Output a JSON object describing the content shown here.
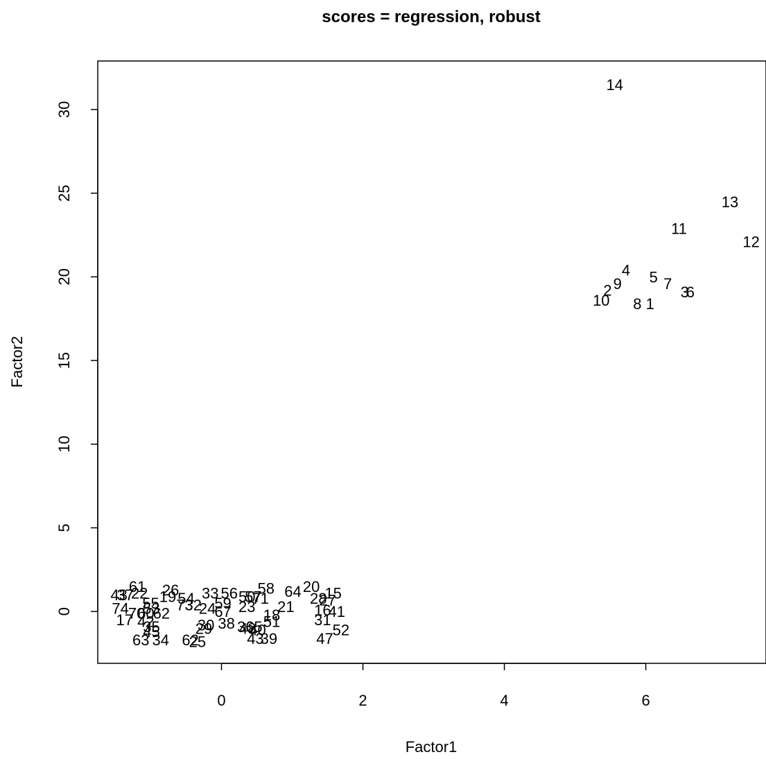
{
  "chart_data": {
    "type": "scatter",
    "title": "scores = regression, robust",
    "xlabel": "Factor1",
    "ylabel": "Factor2",
    "xlim": [
      -1.75,
      7.7
    ],
    "ylim": [
      -3.1,
      32.9
    ],
    "xticks": [
      0,
      2,
      4,
      6
    ],
    "yticks": [
      0,
      5,
      10,
      15,
      20,
      25,
      30
    ],
    "grid": false,
    "legend": "none",
    "marker": "text labels",
    "points": [
      {
        "label": "14",
        "x": 5.56,
        "y": 31.5
      },
      {
        "label": "13",
        "x": 7.19,
        "y": 24.5
      },
      {
        "label": "11",
        "x": 6.47,
        "y": 22.9
      },
      {
        "label": "12",
        "x": 7.49,
        "y": 22.1
      },
      {
        "label": "4",
        "x": 5.72,
        "y": 20.4
      },
      {
        "label": "5",
        "x": 6.11,
        "y": 20.0
      },
      {
        "label": "7",
        "x": 6.31,
        "y": 19.6
      },
      {
        "label": "9",
        "x": 5.6,
        "y": 19.6
      },
      {
        "label": "2",
        "x": 5.46,
        "y": 19.2
      },
      {
        "label": "3",
        "x": 6.55,
        "y": 19.1
      },
      {
        "label": "6",
        "x": 6.63,
        "y": 19.1
      },
      {
        "label": "10",
        "x": 5.37,
        "y": 18.6
      },
      {
        "label": "8",
        "x": 5.88,
        "y": 18.4
      },
      {
        "label": "1",
        "x": 6.06,
        "y": 18.4
      },
      {
        "label": "43",
        "x": -1.45,
        "y": 1.0
      },
      {
        "label": "37",
        "x": -1.36,
        "y": 1.0
      },
      {
        "label": "61",
        "x": -1.19,
        "y": 1.5
      },
      {
        "label": "22",
        "x": -1.16,
        "y": 1.1
      },
      {
        "label": "26",
        "x": -0.72,
        "y": 1.3
      },
      {
        "label": "19",
        "x": -0.76,
        "y": 0.9
      },
      {
        "label": "54",
        "x": -0.5,
        "y": 0.8
      },
      {
        "label": "33",
        "x": -0.16,
        "y": 1.1
      },
      {
        "label": "56",
        "x": 0.11,
        "y": 1.1
      },
      {
        "label": "50",
        "x": 0.36,
        "y": 0.9
      },
      {
        "label": "58",
        "x": 0.63,
        "y": 1.4
      },
      {
        "label": "57",
        "x": 0.45,
        "y": 0.9
      },
      {
        "label": "64",
        "x": 1.01,
        "y": 1.2
      },
      {
        "label": "20",
        "x": 1.27,
        "y": 1.5
      },
      {
        "label": "15",
        "x": 1.58,
        "y": 1.1
      },
      {
        "label": "28",
        "x": 1.37,
        "y": 0.8
      },
      {
        "label": "27",
        "x": 1.5,
        "y": 0.7
      },
      {
        "label": "74",
        "x": -1.43,
        "y": 0.2
      },
      {
        "label": "55",
        "x": -1.0,
        "y": 0.5
      },
      {
        "label": "53",
        "x": -0.99,
        "y": 0.2
      },
      {
        "label": "73",
        "x": -0.52,
        "y": 0.4
      },
      {
        "label": "32",
        "x": -0.4,
        "y": 0.4
      },
      {
        "label": "24",
        "x": -0.2,
        "y": 0.2
      },
      {
        "label": "59",
        "x": 0.02,
        "y": 0.5
      },
      {
        "label": "23",
        "x": 0.36,
        "y": 0.3
      },
      {
        "label": "71",
        "x": 0.55,
        "y": 0.8
      },
      {
        "label": "21",
        "x": 0.91,
        "y": 0.3
      },
      {
        "label": "16",
        "x": 1.43,
        "y": 0.1
      },
      {
        "label": "41",
        "x": 1.63,
        "y": 0.0
      },
      {
        "label": "67",
        "x": 0.02,
        "y": 0.0
      },
      {
        "label": "70",
        "x": -1.2,
        "y": -0.1
      },
      {
        "label": "60",
        "x": -1.07,
        "y": -0.1
      },
      {
        "label": "62",
        "x": -0.85,
        "y": -0.1
      },
      {
        "label": "17",
        "x": -1.37,
        "y": -0.5
      },
      {
        "label": "42",
        "x": -1.07,
        "y": -0.6
      },
      {
        "label": "18",
        "x": 0.71,
        "y": -0.2
      },
      {
        "label": "51",
        "x": 0.71,
        "y": -0.6
      },
      {
        "label": "31",
        "x": 1.43,
        "y": -0.5
      },
      {
        "label": "52",
        "x": 1.69,
        "y": -1.1
      },
      {
        "label": "30",
        "x": -0.22,
        "y": -0.8
      },
      {
        "label": "38",
        "x": 0.07,
        "y": -0.7
      },
      {
        "label": "36",
        "x": 0.34,
        "y": -0.9
      },
      {
        "label": "65",
        "x": 0.46,
        "y": -0.9
      },
      {
        "label": "48",
        "x": 0.37,
        "y": -1.0
      },
      {
        "label": "40",
        "x": 0.51,
        "y": -1.1
      },
      {
        "label": "29",
        "x": -0.25,
        "y": -1.0
      },
      {
        "label": "35",
        "x": -0.99,
        "y": -0.9
      },
      {
        "label": "45",
        "x": -0.99,
        "y": -1.2
      },
      {
        "label": "63",
        "x": -1.14,
        "y": -1.7
      },
      {
        "label": "34",
        "x": -0.86,
        "y": -1.7
      },
      {
        "label": "62",
        "x": -0.44,
        "y": -1.7
      },
      {
        "label": "25",
        "x": -0.34,
        "y": -1.8
      },
      {
        "label": "43",
        "x": 0.48,
        "y": -1.6
      },
      {
        "label": "39",
        "x": 0.67,
        "y": -1.6
      },
      {
        "label": "47",
        "x": 1.46,
        "y": -1.6
      }
    ]
  }
}
